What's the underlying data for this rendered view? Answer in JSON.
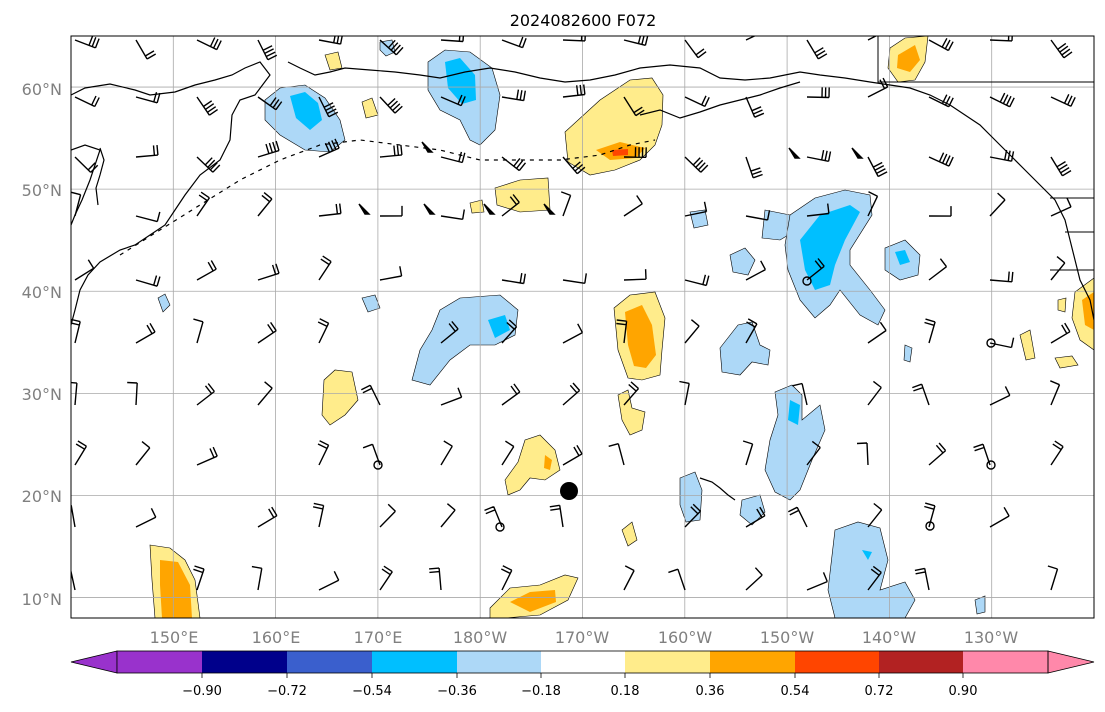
{
  "title": "2024082600 F072",
  "lat_labels": [
    "60°N",
    "50°N",
    "40°N",
    "30°N",
    "20°N",
    "10°N"
  ],
  "lat_values": [
    60,
    50,
    40,
    30,
    20,
    10
  ],
  "lon_labels": [
    "150°E",
    "160°E",
    "170°E",
    "180°W",
    "170°W",
    "160°W",
    "150°W",
    "140°W",
    "130°W"
  ],
  "lon_values": [
    150,
    160,
    170,
    180,
    190,
    200,
    210,
    220,
    230
  ],
  "map_extent": {
    "lon_min": 140,
    "lon_max": 240,
    "lat_min": 8,
    "lat_max": 65
  },
  "colorbar": {
    "tick_labels": [
      "−0.90",
      "−0.72",
      "−0.54",
      "−0.36",
      "−0.18",
      "0.18",
      "0.36",
      "0.54",
      "0.72",
      "0.90"
    ],
    "colors": [
      "#9932cc",
      "#00008b",
      "#3a5fcd",
      "#00bfff",
      "#add8f7",
      "#ffffff",
      "#ffec8b",
      "#ffa500",
      "#ff4500",
      "#b22222",
      "#ff88aa"
    ]
  },
  "colors": {
    "light_blue": "#add8f7",
    "blue": "#00bfff",
    "light_yellow": "#ffec8b",
    "orange": "#ffa500",
    "red_orange": "#ff4500",
    "grid": "#a9a9a9",
    "coast": "#000000"
  }
}
